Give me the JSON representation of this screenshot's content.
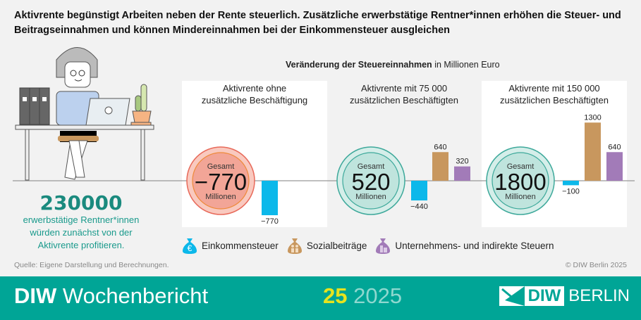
{
  "title": "Aktivrente begünstigt Arbeiten neben der Rente steuerlich. Zusätzliche erwerbstätige Rentner*innen erhöhen die Steuer- und Beitragseinnahmen und können Mindereinnahmen bei der Einkommensteuer ausgleichen",
  "subtitle_bold": "Veränderung der Steuereinnahmen",
  "subtitle_unit": "in Millionen Euro",
  "highlight": {
    "number": "230000",
    "text": [
      "erwerbstätige Rentner*innen",
      "würden zunächst von der",
      "Aktivrente profitieren."
    ]
  },
  "chart_data": {
    "type": "bar",
    "series_names": [
      "Einkommensteuer",
      "Sozialbeiträge",
      "Unternehmens- und indirekte Steuern"
    ],
    "colors": {
      "Einkommensteuer": "#0cb8ea",
      "Sozialbeiträge": "#c8975e",
      "Unternehmens- und indirekte Steuern": "#a27bb8",
      "positive_total": "#bfe4dd",
      "negative_total": "#f2a597"
    },
    "panels": [
      {
        "title": [
          "Aktivrente ohne",
          "zusätzliche Beschäftigung"
        ],
        "total_label": "Gesamt",
        "total": "−770",
        "total_unit": "Millionen",
        "values": [
          -770,
          null,
          null
        ],
        "labels": [
          "−770",
          "",
          ""
        ]
      },
      {
        "title": [
          "Aktivrente mit 75 000",
          "zusätzlichen Beschäftigten"
        ],
        "total_label": "Gesamt",
        "total": "520",
        "total_unit": "Millionen",
        "values": [
          -440,
          640,
          320
        ],
        "labels": [
          "−440",
          "640",
          "320"
        ]
      },
      {
        "title": [
          "Aktivrente mit 150 000",
          "zusätzlichen Beschäftigten"
        ],
        "total_label": "Gesamt",
        "total": "1800",
        "total_unit": "Millionen",
        "values": [
          -100,
          1300,
          640
        ],
        "labels": [
          "−100",
          "1300",
          "640"
        ]
      }
    ]
  },
  "legend": [
    {
      "label": "Einkommensteuer",
      "icon": "euro-moneybag-icon"
    },
    {
      "label": "Sozialbeiträge",
      "icon": "people-moneybag-icon"
    },
    {
      "label": "Unternehmens- und indirekte Steuern",
      "icon": "buildings-moneybag-icon"
    }
  ],
  "source": "Quelle: Eigene Darstellung und Berechnungen.",
  "copyright": "© DIW Berlin 2025",
  "footer": {
    "brand_bold": "DIW",
    "brand": " Wochenbericht",
    "issue": "25",
    "year": " 2025",
    "logo_a": "DIW",
    "logo_b": "BERLIN"
  }
}
